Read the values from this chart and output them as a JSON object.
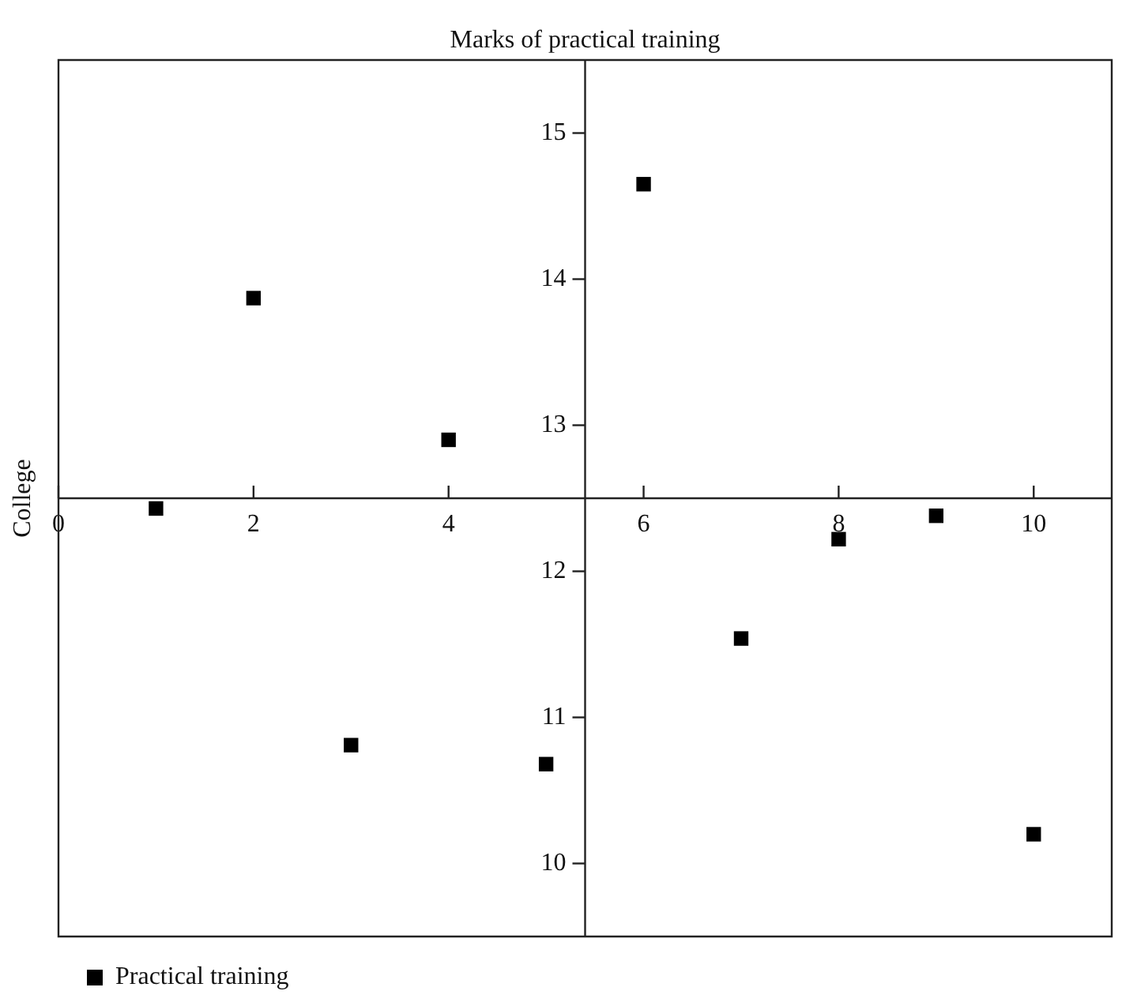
{
  "chart_data": {
    "type": "scatter",
    "title": "Marks of practical training",
    "ylabel": "College",
    "x": [
      1,
      2,
      3,
      4,
      5,
      6,
      7,
      8,
      9,
      10
    ],
    "series": [
      {
        "name": "Practical training",
        "color": "#000000",
        "values": [
          12.43,
          13.87,
          10.81,
          12.9,
          10.68,
          14.65,
          11.54,
          12.22,
          12.38,
          10.2
        ]
      }
    ],
    "xlim": [
      0,
      10.8
    ],
    "xticks": [
      0,
      2,
      4,
      6,
      8,
      10
    ],
    "ylim": [
      9.5,
      15.5
    ],
    "yticks": [
      10,
      11,
      12,
      13,
      14,
      15
    ],
    "marker": "square",
    "grid": false,
    "legend": "bottom left"
  }
}
